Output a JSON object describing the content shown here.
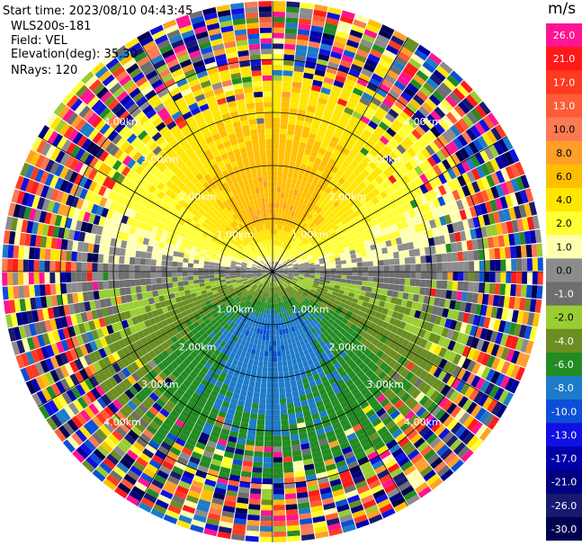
{
  "info": {
    "start_time": "Start time: 2023/08/10 04:43:45",
    "instrument": "WLS200s-181",
    "field": "Field: VEL",
    "elevation": "Elevation(deg): 35.30",
    "nrays": "NRays: 120"
  },
  "chart_data": {
    "type": "heatmap",
    "subtype": "ppi-polar",
    "rings_km": [
      1.0,
      2.0,
      3.0,
      4.0
    ],
    "ring_label_format": "{v}km",
    "spokes_deg": [
      0,
      30,
      60,
      90,
      120,
      150,
      180,
      210,
      240,
      270,
      300,
      330
    ],
    "max_range_km": 5.1,
    "nrays": 120,
    "gate_km": 0.1,
    "colorbar": {
      "unit": "m/s",
      "ticks": [
        "26.0",
        "21.0",
        "17.0",
        "13.0",
        "10.0",
        "8.0",
        "6.0",
        "4.0",
        "2.0",
        "1.0",
        "0.0",
        "-1.0",
        "-2.0",
        "-4.0",
        "-6.0",
        "-8.0",
        "-10.0",
        "-13.0",
        "-17.0",
        "-21.0",
        "-26.0",
        "-30.0"
      ],
      "colors": [
        "#ff1493",
        "#ff1a1a",
        "#ff3a20",
        "#ff5b36",
        "#fb7a54",
        "#ff9f2a",
        "#ffbf00",
        "#ffe600",
        "#ffff33",
        "#ffffb0",
        "#8c8c8c",
        "#6e6e6e",
        "#9acd32",
        "#6b8e23",
        "#228b22",
        "#1e7bc8",
        "#0b4fd6",
        "#1010e0",
        "#0000a8",
        "#000080",
        "#191970",
        "#000050"
      ]
    }
  }
}
